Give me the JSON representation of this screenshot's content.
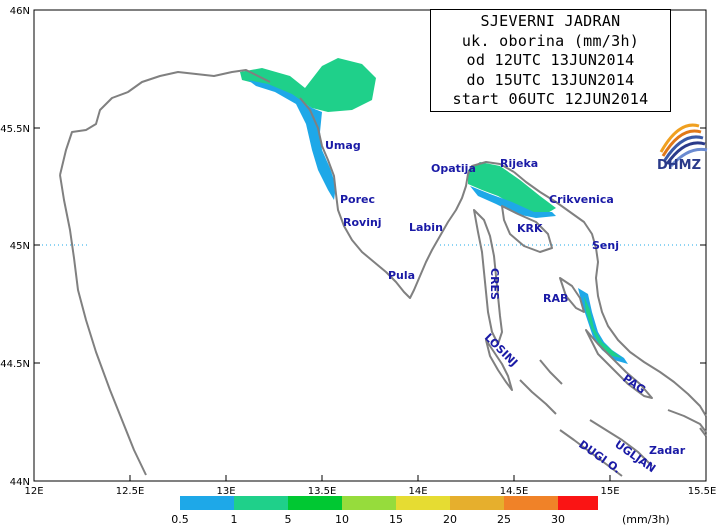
{
  "title": {
    "line1": "SJEVERNI JADRAN",
    "line2": "uk. oborina (mm/3h)",
    "line3": "od 12UTC 13JUN2014",
    "line4": "do 15UTC 13JUN2014",
    "line5": "start 06UTC 12JUN2014"
  },
  "logo": {
    "text": "DHMZ",
    "icon": "dhmz-logo-icon"
  },
  "axes": {
    "lat_labels": [
      "46N",
      "45.5N",
      "45N",
      "44.5N",
      "44N"
    ],
    "lon_labels": [
      "12E",
      "12.5E",
      "13E",
      "13.5E",
      "14E",
      "14.5E",
      "15E",
      "15.5E"
    ]
  },
  "places": {
    "umag": "Umag",
    "porec": "Porec",
    "rovinj": "Rovinj",
    "pula": "Pula",
    "labin": "Labin",
    "opatija": "Opatija",
    "rijeka": "Rijeka",
    "crikvenica": "Crikvenica",
    "krk": "KRK",
    "senj": "Senj",
    "cres": "CRES",
    "rab": "RAB",
    "losinj": "LOSINJ",
    "pag": "PAG",
    "ugljan": "UGLJAN",
    "dugi": "DUGI O.",
    "zadar": "Zadar"
  },
  "legend": {
    "labels": [
      "0.5",
      "1",
      "5",
      "10",
      "15",
      "20",
      "25",
      "30"
    ],
    "unit": "(mm/3h)",
    "colors": [
      "#1ea8e8",
      "#1fd08a",
      "#00c832",
      "#96dc3c",
      "#e6dc32",
      "#e6af2d",
      "#f08228",
      "#fa1414"
    ]
  }
}
